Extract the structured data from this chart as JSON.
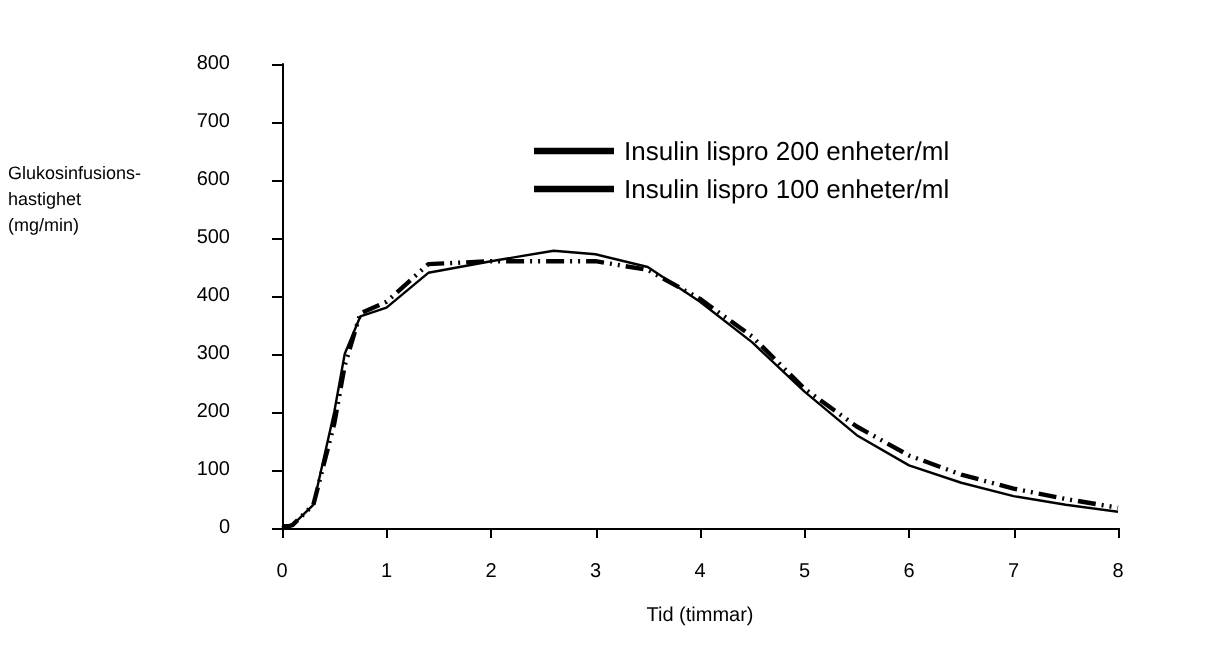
{
  "chart_data": {
    "type": "line",
    "xlabel": "Tid (timmar)",
    "ylabel": "Glukosinfusions-hastighet (mg/min)",
    "x": [
      0,
      0.1,
      0.3,
      0.5,
      0.6,
      0.75,
      1.0,
      1.4,
      2.0,
      2.6,
      3.0,
      3.5,
      4.0,
      4.5,
      5.0,
      5.5,
      6.0,
      6.5,
      7.0,
      7.5,
      8.0
    ],
    "series": [
      {
        "name": "Insulin lispro 200 enheter/ml",
        "color": "#000000",
        "line_style": "solid",
        "values": [
          5,
          5,
          40,
          200,
          300,
          365,
          380,
          440,
          460,
          478,
          472,
          450,
          390,
          320,
          235,
          160,
          108,
          78,
          55,
          40,
          28
        ]
      },
      {
        "name": "Insulin lispro 100 enheter/ml",
        "color": "#000000",
        "line_style": "dashed",
        "values": [
          0,
          5,
          40,
          180,
          280,
          370,
          390,
          455,
          460,
          460,
          460,
          445,
          395,
          330,
          240,
          175,
          125,
          92,
          68,
          50,
          35
        ]
      }
    ],
    "xlim": [
      0,
      8
    ],
    "xticks": [
      0,
      1,
      2,
      3,
      4,
      5,
      6,
      7,
      8
    ],
    "ylim": [
      0,
      800
    ],
    "yticks": [
      0,
      100,
      200,
      300,
      400,
      500,
      600,
      700,
      800
    ],
    "grid": false,
    "legend": "top right",
    "marker": "none"
  }
}
